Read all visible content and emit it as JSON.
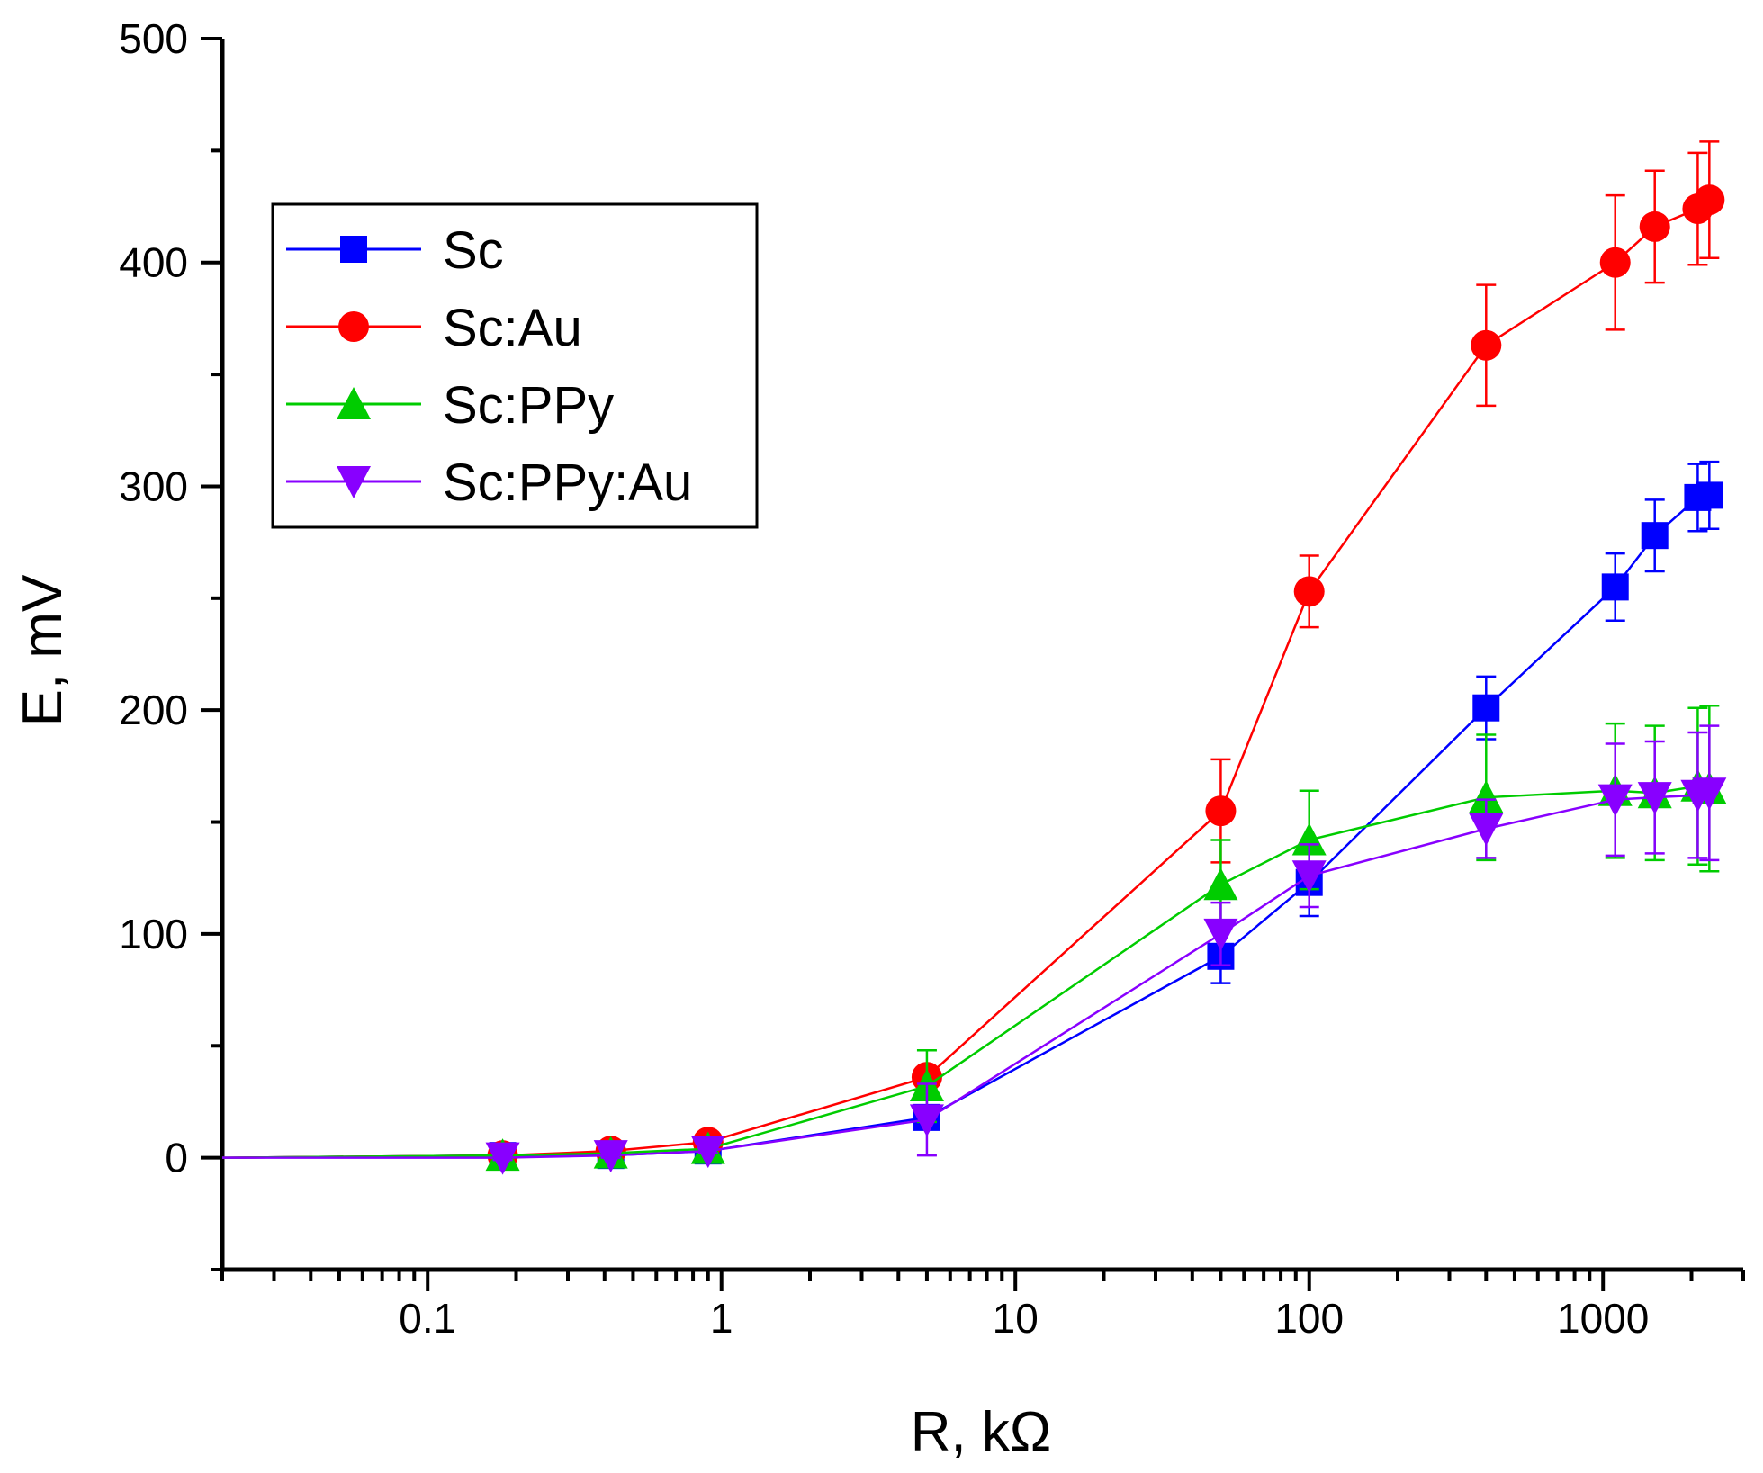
{
  "chart_data": {
    "type": "line",
    "title": "",
    "xlabel": "R, kΩ",
    "ylabel": "E, mV",
    "xscale": "log",
    "xlim": [
      0.02,
      3000
    ],
    "ylim": [
      -50,
      500
    ],
    "grid": false,
    "legend_position": "top-left",
    "x_ticks": [
      {
        "value": 0.1,
        "label": "0.1"
      },
      {
        "value": 1,
        "label": "1"
      },
      {
        "value": 10,
        "label": "10"
      },
      {
        "value": 100,
        "label": "100"
      },
      {
        "value": 1000,
        "label": "1000"
      }
    ],
    "y_ticks": [
      {
        "value": 0,
        "label": "0"
      },
      {
        "value": 100,
        "label": "100"
      },
      {
        "value": 200,
        "label": "200"
      },
      {
        "value": 300,
        "label": "300"
      },
      {
        "value": 400,
        "label": "400"
      },
      {
        "value": 500,
        "label": "500"
      }
    ],
    "x": [
      0.02,
      0.18,
      0.42,
      0.9,
      5,
      50,
      100,
      400,
      1100,
      1500,
      2100,
      2300
    ],
    "series": [
      {
        "name": "Sc",
        "color": "#0000ff",
        "marker": "square",
        "values": [
          0,
          1,
          1,
          3,
          18,
          90,
          123,
          201,
          255,
          278,
          295,
          296
        ],
        "errors": [
          0,
          1,
          1,
          2,
          3,
          12,
          15,
          14,
          15,
          16,
          15,
          15
        ]
      },
      {
        "name": "Sc:Au",
        "color": "#ff0000",
        "marker": "circle",
        "values": [
          0,
          1,
          3,
          7,
          36,
          155,
          253,
          363,
          400,
          416,
          424,
          428
        ],
        "errors": [
          0,
          1,
          1,
          1,
          2,
          23,
          16,
          27,
          30,
          25,
          25,
          26
        ]
      },
      {
        "name": "Sc:PPy",
        "color": "#00cc00",
        "marker": "triangle-up",
        "values": [
          0,
          1,
          2,
          4,
          32,
          122,
          142,
          161,
          164,
          163,
          166,
          165
        ],
        "errors": [
          0,
          1,
          1,
          1,
          16,
          20,
          22,
          28,
          30,
          30,
          35,
          37
        ]
      },
      {
        "name": "Sc:PPy:Au",
        "color": "#8800ff",
        "marker": "triangle-down",
        "values": [
          0,
          0,
          1,
          3,
          17,
          100,
          126,
          147,
          160,
          161,
          162,
          163
        ],
        "errors": [
          0,
          1,
          1,
          1,
          16,
          14,
          14,
          13,
          25,
          25,
          28,
          30
        ]
      }
    ]
  }
}
